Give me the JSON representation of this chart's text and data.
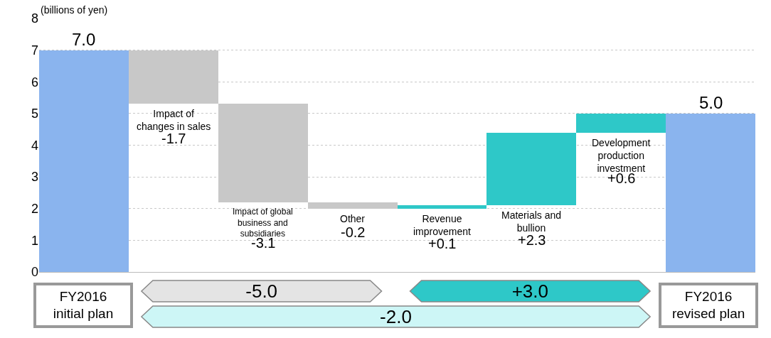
{
  "chart_data": {
    "type": "bar",
    "ylabel": "(billions of yen)",
    "categories": [
      "FY2016 initial plan",
      "Impact of changes in sales",
      "Impact of global business and subsidiaries",
      "Other",
      "Revenue improvement",
      "Materials and bullion",
      "Development production investment",
      "FY2016 revised plan"
    ],
    "values": [
      7.0,
      -1.7,
      -3.1,
      -0.2,
      0.1,
      2.3,
      0.6,
      5.0
    ],
    "base": [
      0,
      7.0,
      5.3,
      2.2,
      2.0,
      2.1,
      4.4,
      0
    ],
    "value_labels": [
      "7.0",
      "-1.7",
      "-3.1",
      "-0.2",
      "+0.1",
      "+2.3",
      "+0.6",
      "5.0"
    ],
    "colors": [
      "#8ab4ee",
      "#c8c8c8",
      "#c8c8c8",
      "#c8c8c8",
      "#2ec8c8",
      "#2ec8c8",
      "#2ec8c8",
      "#8ab4ee"
    ],
    "ylim": [
      0,
      8
    ],
    "yticks": [
      0,
      1,
      2,
      3,
      4,
      5,
      6,
      7,
      8
    ],
    "grid": "y",
    "tick_labels": "y",
    "annotations": [
      "-5.0",
      "+3.0",
      "-2.0"
    ]
  }
}
